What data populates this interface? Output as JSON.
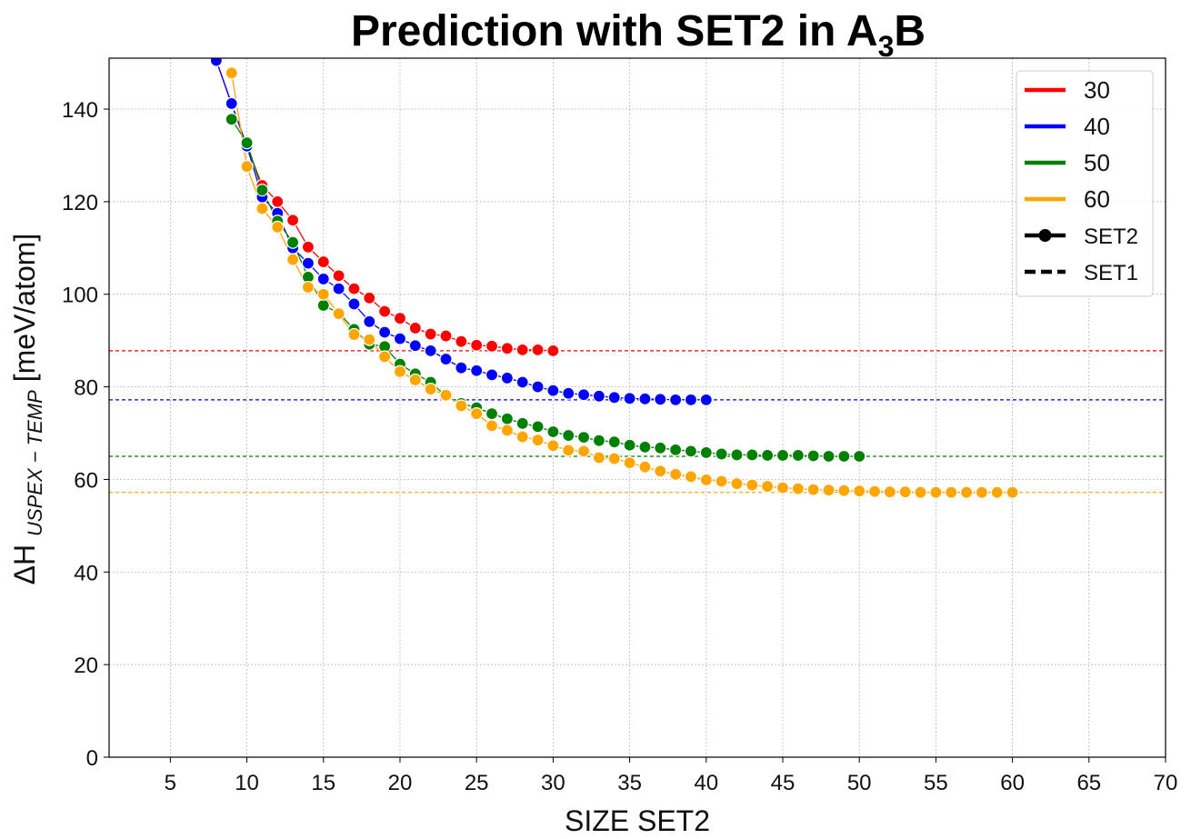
{
  "chart_data": {
    "type": "line",
    "title": {
      "main": "Prediction with SET2 in A",
      "sub": "3",
      "tail": "B"
    },
    "xlabel": "SIZE SET2",
    "ylabel": {
      "main": "ΔH ",
      "sub": "USPEX − TEMP",
      "tail": " [meV/atom]"
    },
    "xlim": [
      1,
      70
    ],
    "ylim": [
      0,
      151
    ],
    "xticks": [
      5,
      10,
      15,
      20,
      25,
      30,
      35,
      40,
      45,
      50,
      55,
      60,
      65,
      70
    ],
    "yticks": [
      0,
      20,
      40,
      60,
      80,
      100,
      120,
      140
    ],
    "grid": true,
    "legend_position": "top-right",
    "legend": [
      {
        "label": "30",
        "color": "#ff0000",
        "style": "solid"
      },
      {
        "label": "40",
        "color": "#0000ff",
        "style": "solid"
      },
      {
        "label": "50",
        "color": "#008000",
        "style": "solid"
      },
      {
        "label": "60",
        "color": "#ffa500",
        "style": "solid"
      },
      {
        "label": "SET2",
        "color": "#000000",
        "style": "line-marker"
      },
      {
        "label": "SET1",
        "color": "#000000",
        "style": "dashed"
      }
    ],
    "series": [
      {
        "name": "30",
        "color": "#ff0000",
        "set1_value": 87.8,
        "x": [
          8,
          9,
          10,
          11,
          12,
          13,
          14,
          15,
          16,
          17,
          18,
          19,
          20,
          21,
          22,
          23,
          24,
          25,
          26,
          27,
          28,
          29,
          30
        ],
        "y": [
          150.5,
          141.0,
          132.0,
          123.5,
          120.0,
          116.0,
          110.2,
          107.0,
          104.0,
          101.2,
          99.2,
          96.3,
          94.8,
          92.7,
          91.4,
          91.0,
          89.8,
          89.0,
          88.8,
          88.3,
          88.0,
          88.0,
          87.8
        ]
      },
      {
        "name": "40",
        "color": "#0000ff",
        "set1_value": 77.2,
        "x": [
          8,
          9,
          10,
          11,
          12,
          13,
          14,
          15,
          16,
          17,
          18,
          19,
          20,
          21,
          22,
          23,
          24,
          25,
          26,
          27,
          28,
          29,
          30,
          31,
          32,
          33,
          34,
          35,
          36,
          37,
          38,
          39,
          40
        ],
        "y": [
          150.5,
          141.2,
          132.0,
          121.0,
          117.5,
          110.0,
          106.7,
          103.3,
          101.2,
          97.9,
          94.1,
          91.8,
          90.4,
          88.9,
          87.8,
          86.0,
          84.1,
          83.5,
          82.6,
          81.9,
          81.0,
          80.0,
          79.2,
          78.6,
          78.3,
          78.0,
          77.7,
          77.5,
          77.4,
          77.3,
          77.2,
          77.2,
          77.2
        ]
      },
      {
        "name": "50",
        "color": "#008000",
        "set1_value": 65.0,
        "x": [
          9,
          10,
          11,
          12,
          13,
          14,
          15,
          16,
          17,
          18,
          19,
          20,
          21,
          22,
          23,
          24,
          25,
          26,
          27,
          28,
          29,
          30,
          31,
          32,
          33,
          34,
          35,
          36,
          37,
          38,
          39,
          40,
          41,
          42,
          43,
          44,
          45,
          46,
          47,
          48,
          49,
          50
        ],
        "y": [
          137.8,
          132.7,
          122.5,
          115.8,
          111.2,
          103.7,
          97.6,
          96.0,
          92.4,
          89.2,
          88.7,
          84.9,
          82.8,
          81.0,
          78.0,
          76.4,
          75.5,
          74.2,
          73.1,
          72.1,
          71.4,
          70.3,
          69.5,
          69.1,
          68.4,
          68.1,
          67.4,
          67.0,
          66.8,
          66.4,
          66.1,
          65.8,
          65.5,
          65.3,
          65.3,
          65.2,
          65.2,
          65.2,
          65.1,
          65.0,
          65.0,
          65.0
        ]
      },
      {
        "name": "60",
        "color": "#ffa500",
        "set1_value": 57.2,
        "x": [
          9,
          10,
          11,
          12,
          13,
          14,
          15,
          16,
          17,
          18,
          19,
          20,
          21,
          22,
          23,
          24,
          25,
          26,
          27,
          28,
          29,
          30,
          31,
          32,
          33,
          34,
          35,
          36,
          37,
          38,
          39,
          40,
          41,
          42,
          43,
          44,
          45,
          46,
          47,
          48,
          49,
          50,
          51,
          52,
          53,
          54,
          55,
          56,
          57,
          58,
          59,
          60
        ],
        "y": [
          147.8,
          127.6,
          118.5,
          114.5,
          107.5,
          101.5,
          100.0,
          95.8,
          91.3,
          90.2,
          86.5,
          83.3,
          81.5,
          79.5,
          78.2,
          75.9,
          74.2,
          71.6,
          70.6,
          69.2,
          68.5,
          67.3,
          66.3,
          66.1,
          64.7,
          64.5,
          63.6,
          62.7,
          61.8,
          61.1,
          60.6,
          59.9,
          59.6,
          59.1,
          58.8,
          58.5,
          58.2,
          58.0,
          57.8,
          57.7,
          57.6,
          57.5,
          57.4,
          57.3,
          57.3,
          57.2,
          57.2,
          57.2,
          57.2,
          57.2,
          57.2,
          57.2
        ]
      }
    ]
  }
}
